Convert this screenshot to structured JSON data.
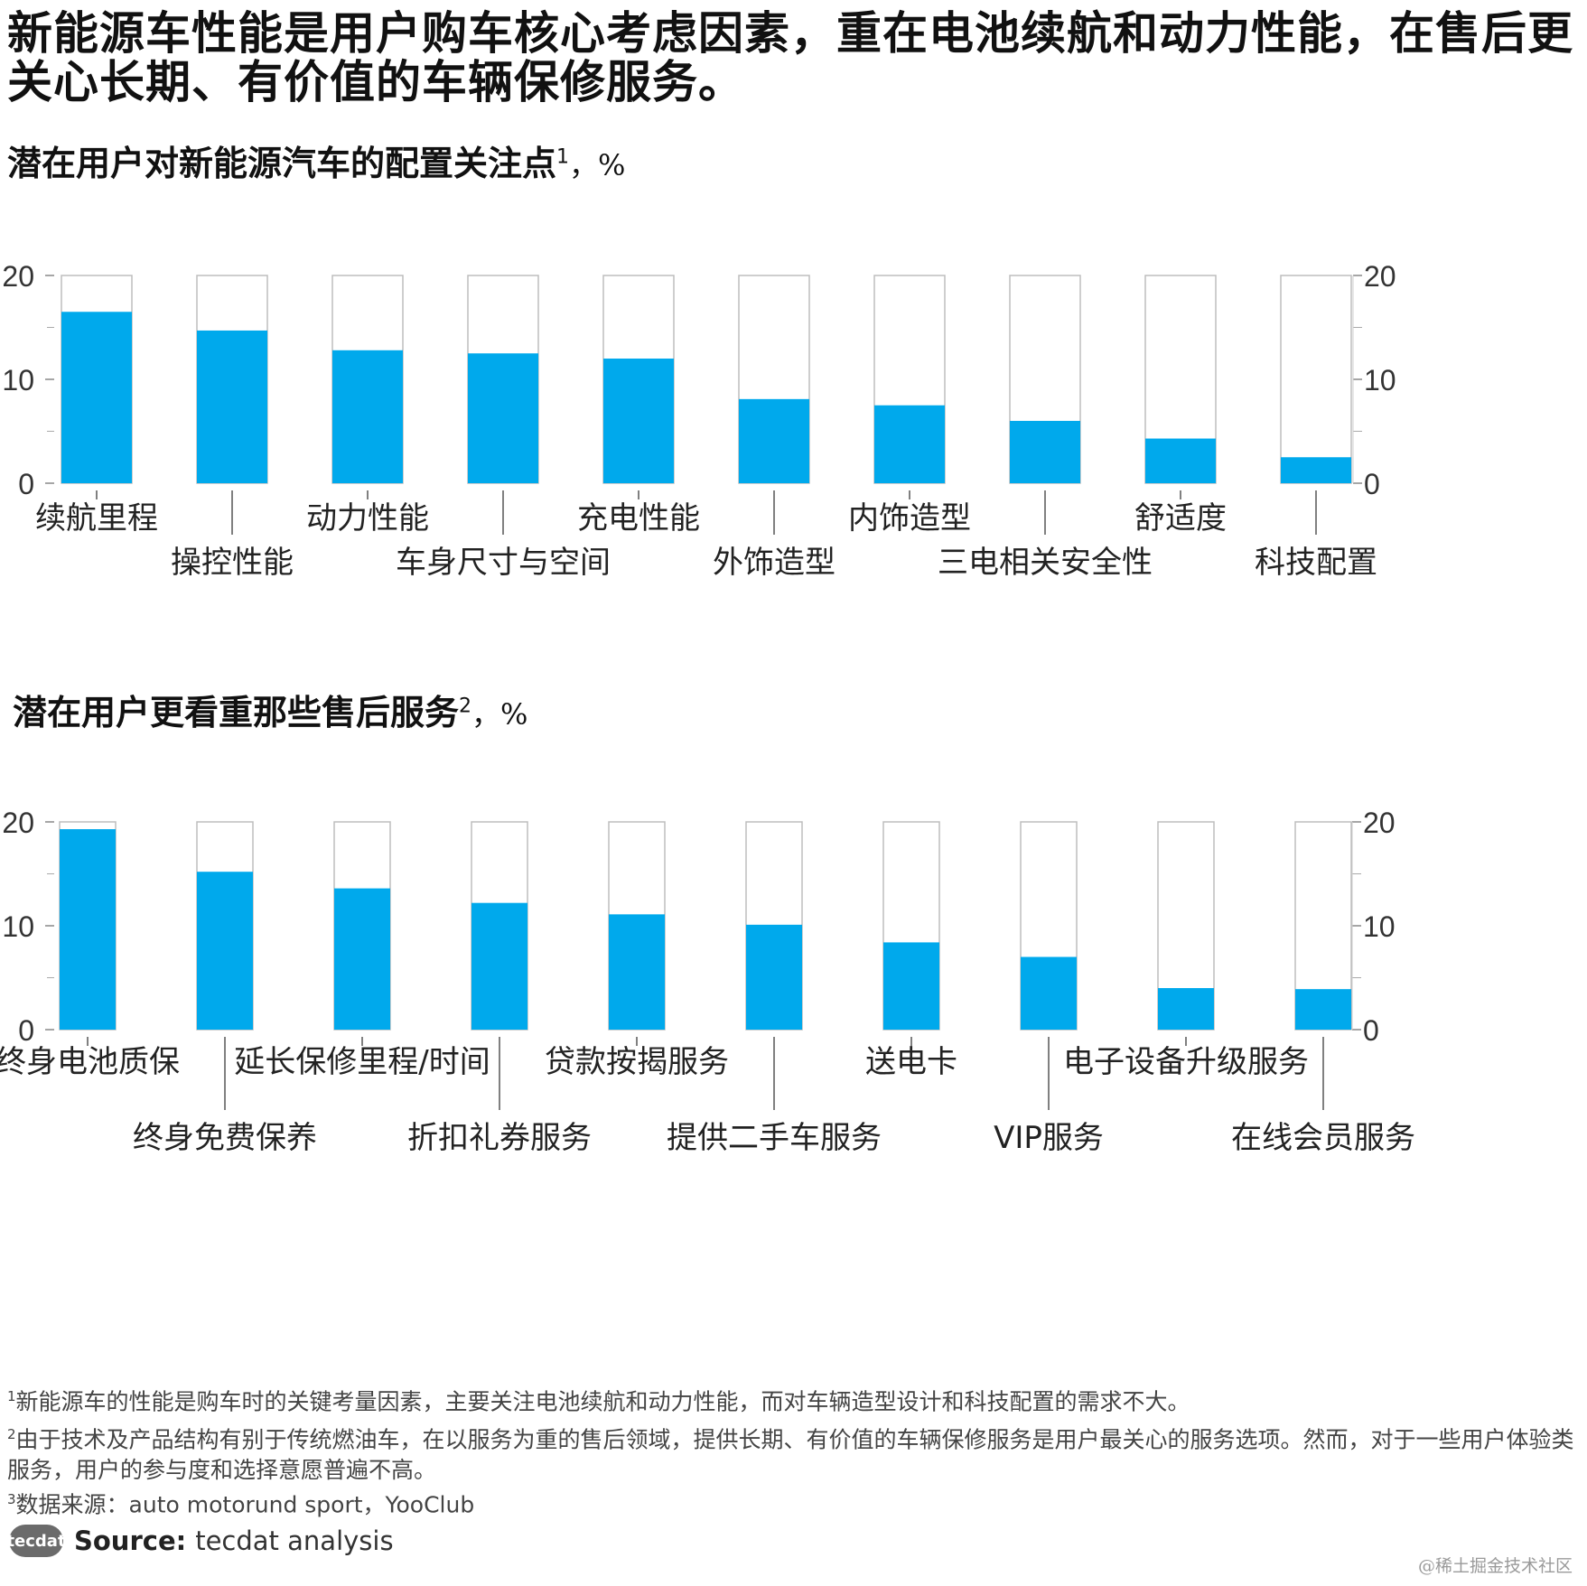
{
  "headline": "新能源车性能是用户购车核心考虑因素，重在电池续航和动力性能，在售后更关心长期、有价值的车辆保修服务。",
  "section1": {
    "title": "潜在用户对新能源汽车的配置关注点",
    "sup": "1",
    "unit": "，%"
  },
  "section2": {
    "title": "潜在用户更看重那些售后服务",
    "sup": "2",
    "unit": "，%"
  },
  "chart_data": [
    {
      "type": "bar",
      "title": "潜在用户对新能源汽车的配置关注点1，%",
      "categories": [
        "续航里程",
        "操控性能",
        "动力性能",
        "车身尺寸与空间",
        "充电性能",
        "外饰造型",
        "内饰造型",
        "三电相关安全性",
        "舒适度",
        "科技配置"
      ],
      "values": [
        16.5,
        14.7,
        12.8,
        12.5,
        12.0,
        8.1,
        7.5,
        6.0,
        4.3,
        2.5
      ],
      "ylim": [
        0,
        20
      ],
      "yticks": [
        "0",
        "10",
        "20"
      ],
      "axis_both_sides": true
    },
    {
      "type": "bar",
      "title": "潜在用户更看重那些售后服务2，%",
      "categories": [
        "终身电池质保",
        "终身免费保养",
        "延长保修里程/时间",
        "折扣礼券服务",
        "贷款按揭服务",
        "提供二手车服务",
        "送电卡",
        "VIP服务",
        "电子设备升级服务",
        "在线会员服务"
      ],
      "values": [
        19.3,
        15.2,
        13.6,
        12.2,
        11.1,
        10.1,
        8.4,
        7.0,
        4.0,
        3.9
      ],
      "ylim": [
        0,
        20
      ],
      "yticks": [
        "0",
        "10",
        "20"
      ],
      "axis_both_sides": true
    }
  ],
  "footnotes": {
    "n1_sup": "1",
    "n1": "新能源车的性能是购车时的关键考量因素，主要关注电池续航和动力性能，而对车辆造型设计和科技配置的需求不大。",
    "n2_sup": "2",
    "n2": "由于技术及产品结构有别于传统燃油车，在以服务为重的售后领域，提供长期、有价值的车辆保修服务是用户最关心的服务选项。然而，对于一些用户体验类服务，用户的参与度和选择意愿普遍不高。",
    "n3_sup": "3",
    "n3": "数据来源：auto motorund sport，YooClub"
  },
  "source": {
    "logo": "tecdat",
    "label": "Source:",
    "text": "tecdat analysis"
  },
  "watermark": "@稀土掘金技术社区",
  "colors": {
    "bar": "#00a9ec",
    "frame": "#bdbdbd",
    "axis": "#888888",
    "text": "#222222"
  }
}
